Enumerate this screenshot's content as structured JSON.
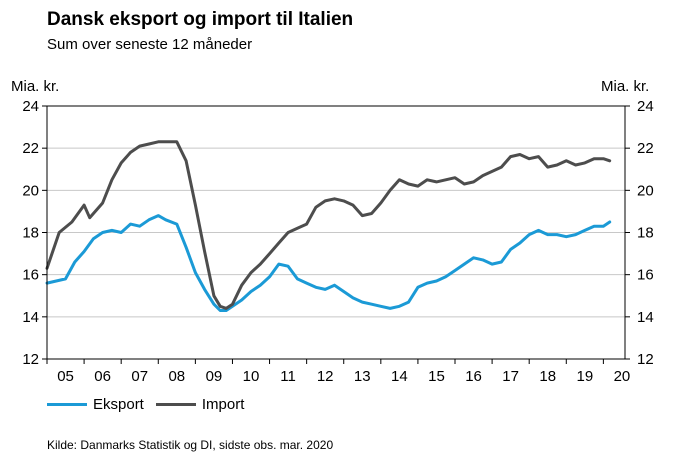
{
  "header": {
    "title": "Dansk eksport og import til Italien",
    "subtitle": "Sum over seneste 12 måneder"
  },
  "axis": {
    "unit_left": "Mia. kr.",
    "unit_right": "Mia. kr."
  },
  "legend": {
    "export_label": "Eksport",
    "import_label": "Import"
  },
  "source": "Kilde: Danmarks Statistik og DI, sidste obs. mar. 2020",
  "chart_data": {
    "type": "line",
    "title": "Dansk eksport og import til Italien",
    "subtitle": "Sum over seneste 12 måneder",
    "ylabel": "Mia. kr.",
    "ylabel_right": "Mia. kr.",
    "xlabel": "",
    "ylim": [
      12,
      24
    ],
    "yticks": [
      12,
      14,
      16,
      18,
      20,
      22,
      24
    ],
    "xlim": [
      2005.0,
      2020.583
    ],
    "xtick_labels": [
      "05",
      "06",
      "07",
      "08",
      "09",
      "10",
      "11",
      "12",
      "13",
      "14",
      "15",
      "16",
      "17",
      "18",
      "19",
      "20"
    ],
    "grid": "horizontal",
    "legend_position": "bottom-left",
    "colors": {
      "export": "#1b9ad6",
      "import": "#4d4d4d"
    },
    "series": [
      {
        "name": "Eksport",
        "x": [
          2005.0,
          2005.5,
          2005.75,
          2006.0,
          2006.25,
          2006.5,
          2006.75,
          2007.0,
          2007.25,
          2007.5,
          2007.75,
          2008.0,
          2008.2,
          2008.5,
          2008.75,
          2009.0,
          2009.25,
          2009.5,
          2009.67,
          2009.83,
          2010.0,
          2010.25,
          2010.5,
          2010.75,
          2011.0,
          2011.25,
          2011.5,
          2011.75,
          2012.0,
          2012.25,
          2012.5,
          2012.75,
          2013.0,
          2013.25,
          2013.5,
          2013.75,
          2014.0,
          2014.25,
          2014.5,
          2014.75,
          2015.0,
          2015.25,
          2015.5,
          2015.75,
          2016.0,
          2016.25,
          2016.5,
          2016.75,
          2017.0,
          2017.25,
          2017.5,
          2017.75,
          2018.0,
          2018.25,
          2018.5,
          2018.75,
          2019.0,
          2019.25,
          2019.5,
          2019.75,
          2020.0,
          2020.17
        ],
        "values": [
          15.6,
          15.8,
          16.6,
          17.1,
          17.7,
          18.0,
          18.1,
          18.0,
          18.4,
          18.3,
          18.6,
          18.8,
          18.6,
          18.4,
          17.3,
          16.1,
          15.3,
          14.6,
          14.3,
          14.3,
          14.5,
          14.8,
          15.2,
          15.5,
          15.9,
          16.5,
          16.4,
          15.8,
          15.6,
          15.4,
          15.3,
          15.5,
          15.2,
          14.9,
          14.7,
          14.6,
          14.5,
          14.4,
          14.5,
          14.7,
          15.4,
          15.6,
          15.7,
          15.9,
          16.2,
          16.5,
          16.8,
          16.7,
          16.5,
          16.6,
          17.2,
          17.5,
          17.9,
          18.1,
          17.9,
          17.9,
          17.8,
          17.9,
          18.1,
          18.3,
          18.3,
          18.5
        ]
      },
      {
        "name": "Import",
        "x": [
          2005.0,
          2005.33,
          2005.67,
          2006.0,
          2006.15,
          2006.5,
          2006.75,
          2007.0,
          2007.25,
          2007.5,
          2007.75,
          2008.0,
          2008.25,
          2008.5,
          2008.75,
          2009.0,
          2009.25,
          2009.5,
          2009.67,
          2009.83,
          2010.0,
          2010.25,
          2010.5,
          2010.75,
          2011.0,
          2011.25,
          2011.5,
          2011.75,
          2012.0,
          2012.25,
          2012.5,
          2012.75,
          2013.0,
          2013.25,
          2013.5,
          2013.75,
          2014.0,
          2014.25,
          2014.5,
          2014.75,
          2015.0,
          2015.25,
          2015.5,
          2015.75,
          2016.0,
          2016.25,
          2016.5,
          2016.75,
          2017.0,
          2017.25,
          2017.5,
          2017.75,
          2018.0,
          2018.25,
          2018.5,
          2018.75,
          2019.0,
          2019.25,
          2019.5,
          2019.75,
          2020.0,
          2020.17
        ],
        "values": [
          16.3,
          18.0,
          18.5,
          19.3,
          18.7,
          19.4,
          20.5,
          21.3,
          21.8,
          22.1,
          22.2,
          22.3,
          22.3,
          22.3,
          21.4,
          19.3,
          17.1,
          15.0,
          14.5,
          14.4,
          14.6,
          15.5,
          16.1,
          16.5,
          17.0,
          17.5,
          18.0,
          18.2,
          18.4,
          19.2,
          19.5,
          19.6,
          19.5,
          19.3,
          18.8,
          18.9,
          19.4,
          20.0,
          20.5,
          20.3,
          20.2,
          20.5,
          20.4,
          20.5,
          20.6,
          20.3,
          20.4,
          20.7,
          20.9,
          21.1,
          21.6,
          21.7,
          21.5,
          21.6,
          21.1,
          21.2,
          21.4,
          21.2,
          21.3,
          21.5,
          21.5,
          21.4
        ]
      }
    ]
  }
}
